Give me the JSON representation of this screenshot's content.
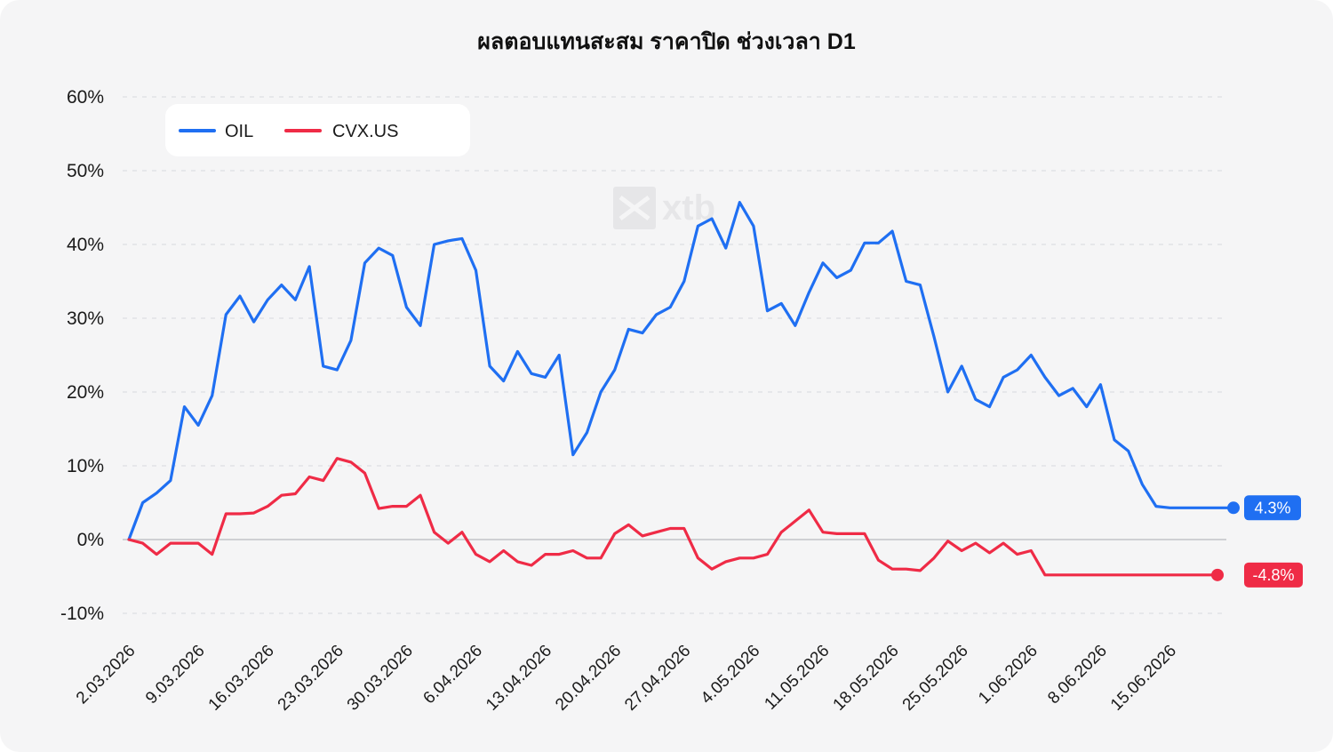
{
  "chart_data": {
    "type": "line",
    "title": "ผลตอบแทนสะสม ราคาปิด ช่วงเวลา D1",
    "xlabel": "",
    "ylabel": "",
    "ylim": [
      -10,
      60
    ],
    "y_unit": "%",
    "y_ticks": [
      "60%",
      "50%",
      "40%",
      "30%",
      "20%",
      "10%",
      "0%",
      "-10%"
    ],
    "grid": "horizontal dashed",
    "legend_position": "top-left",
    "x_ticks": [
      "2.03.2026",
      "9.03.2026",
      "16.03.2026",
      "23.03.2026",
      "30.03.2026",
      "6.04.2026",
      "13.04.2026",
      "20.04.2026",
      "27.04.2026",
      "4.05.2026",
      "11.05.2026",
      "18.05.2026",
      "25.05.2026",
      "1.06.2026",
      "8.06.2026",
      "15.06.2026"
    ],
    "x": [
      "2026-03-02",
      "2026-03-03",
      "2026-03-04",
      "2026-03-05",
      "2026-03-06",
      "2026-03-09",
      "2026-03-10",
      "2026-03-11",
      "2026-03-12",
      "2026-03-13",
      "2026-03-16",
      "2026-03-17",
      "2026-03-18",
      "2026-03-19",
      "2026-03-20",
      "2026-03-23",
      "2026-03-24",
      "2026-03-25",
      "2026-03-26",
      "2026-03-27",
      "2026-03-30",
      "2026-03-31",
      "2026-04-01",
      "2026-04-02",
      "2026-04-03",
      "2026-04-06",
      "2026-04-07",
      "2026-04-08",
      "2026-04-09",
      "2026-04-10",
      "2026-04-13",
      "2026-04-14",
      "2026-04-15",
      "2026-04-16",
      "2026-04-17",
      "2026-04-20",
      "2026-04-21",
      "2026-04-22",
      "2026-04-23",
      "2026-04-24",
      "2026-04-27",
      "2026-04-28",
      "2026-04-29",
      "2026-04-30",
      "2026-05-01",
      "2026-05-04",
      "2026-05-05",
      "2026-05-06",
      "2026-05-07",
      "2026-05-08",
      "2026-05-11",
      "2026-05-12",
      "2026-05-13",
      "2026-05-14",
      "2026-05-15",
      "2026-05-18",
      "2026-05-19",
      "2026-05-20",
      "2026-05-21",
      "2026-05-22",
      "2026-05-25",
      "2026-05-26",
      "2026-05-27",
      "2026-05-28",
      "2026-05-29",
      "2026-06-01",
      "2026-06-02",
      "2026-06-03",
      "2026-06-04",
      "2026-06-05",
      "2026-06-08",
      "2026-06-09",
      "2026-06-10",
      "2026-06-11",
      "2026-06-12",
      "2026-06-15",
      "2026-06-16",
      "2026-06-17",
      "2026-06-18",
      "2026-06-19"
    ],
    "series": [
      {
        "name": "OIL",
        "color": "#1f6ff2",
        "end_label": "4.3%",
        "values": [
          0.0,
          5.0,
          6.3,
          8.0,
          18.0,
          15.5,
          19.5,
          30.5,
          33.0,
          29.5,
          32.5,
          34.5,
          32.5,
          37.0,
          23.5,
          23.0,
          27.0,
          37.5,
          39.5,
          38.5,
          31.5,
          29.0,
          40.0,
          40.5,
          40.8,
          36.5,
          23.5,
          21.5,
          25.5,
          22.5,
          22.0,
          25.0,
          11.5,
          14.5,
          20.0,
          23.0,
          28.5,
          28.0,
          30.5,
          31.5,
          35.0,
          42.5,
          43.5,
          39.5,
          45.7,
          42.5,
          31.0,
          32.0,
          29.0,
          33.5,
          37.5,
          35.5,
          36.5,
          40.2,
          40.2,
          41.8,
          35.0,
          34.5,
          27.5,
          20.0,
          23.5,
          19.0,
          18.0,
          22.0,
          23.0,
          25.0,
          22.0,
          19.5,
          20.5,
          18.0,
          21.0,
          13.5,
          12.0,
          7.5,
          4.5,
          4.3,
          4.3,
          4.3,
          4.3,
          4.3
        ]
      },
      {
        "name": "CVX.US",
        "color": "#ef2b46",
        "end_label": "-4.8%",
        "values": [
          0.0,
          -0.5,
          -2.0,
          -0.5,
          -0.5,
          -0.5,
          -2.0,
          3.5,
          3.5,
          3.6,
          4.5,
          6.0,
          6.2,
          8.5,
          8.0,
          11.0,
          10.5,
          9.0,
          4.2,
          4.5,
          4.5,
          6.0,
          1.0,
          -0.5,
          1.0,
          -2.0,
          -3.0,
          -1.5,
          -3.0,
          -3.5,
          -2.0,
          -2.0,
          -1.5,
          -2.5,
          -2.5,
          0.8,
          2.0,
          0.5,
          1.0,
          1.5,
          1.5,
          -2.5,
          -4.0,
          -3.0,
          -2.5,
          -2.5,
          -2.0,
          1.0,
          2.5,
          4.0,
          1.0,
          0.8,
          0.8,
          0.8,
          -2.8,
          -4.0,
          -4.0,
          -4.2,
          -2.5,
          -0.2,
          -1.5,
          -0.5,
          -1.8,
          -0.5,
          -2.0,
          -1.5,
          -4.8,
          -4.8,
          -4.8,
          -4.8,
          -4.8,
          -4.8,
          -4.8,
          -4.8,
          -4.8,
          -4.8,
          -4.8,
          -4.8,
          -4.8,
          -4.8
        ]
      }
    ]
  },
  "legend": {
    "items": [
      {
        "label": "OIL",
        "color": "#1f6ff2"
      },
      {
        "label": "CVX.US",
        "color": "#ef2b46"
      }
    ]
  },
  "watermark": {
    "text": "xtb"
  }
}
